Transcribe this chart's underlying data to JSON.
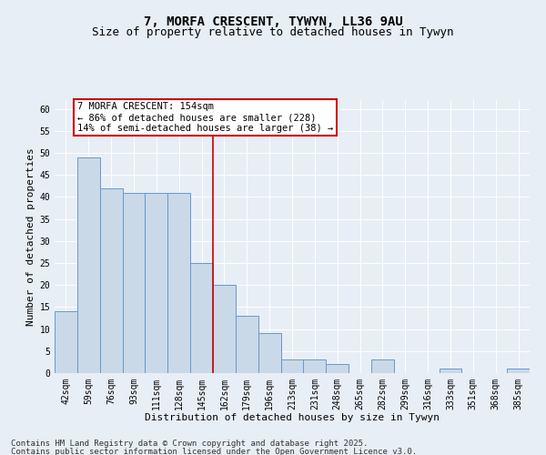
{
  "title": "7, MORFA CRESCENT, TYWYN, LL36 9AU",
  "subtitle": "Size of property relative to detached houses in Tywyn",
  "xlabel": "Distribution of detached houses by size in Tywyn",
  "ylabel": "Number of detached properties",
  "categories": [
    "42sqm",
    "59sqm",
    "76sqm",
    "93sqm",
    "111sqm",
    "128sqm",
    "145sqm",
    "162sqm",
    "179sqm",
    "196sqm",
    "213sqm",
    "231sqm",
    "248sqm",
    "265sqm",
    "282sqm",
    "299sqm",
    "316sqm",
    "333sqm",
    "351sqm",
    "368sqm",
    "385sqm"
  ],
  "values": [
    14,
    49,
    42,
    41,
    41,
    41,
    25,
    20,
    13,
    9,
    3,
    3,
    2,
    0,
    3,
    0,
    0,
    1,
    0,
    0,
    1
  ],
  "bar_color": "#c9d9e8",
  "bar_edge_color": "#6699cc",
  "red_line_index": 7,
  "annotation_text": "7 MORFA CRESCENT: 154sqm\n← 86% of detached houses are smaller (228)\n14% of semi-detached houses are larger (38) →",
  "annotation_box_color": "#ffffff",
  "annotation_box_edge": "#cc0000",
  "red_line_color": "#cc0000",
  "ylim": [
    0,
    62
  ],
  "yticks": [
    0,
    5,
    10,
    15,
    20,
    25,
    30,
    35,
    40,
    45,
    50,
    55,
    60
  ],
  "background_color": "#e8eef5",
  "grid_color": "#ffffff",
  "footer_line1": "Contains HM Land Registry data © Crown copyright and database right 2025.",
  "footer_line2": "Contains public sector information licensed under the Open Government Licence v3.0.",
  "title_fontsize": 10,
  "subtitle_fontsize": 9,
  "xlabel_fontsize": 8,
  "ylabel_fontsize": 8,
  "tick_fontsize": 7,
  "annotation_fontsize": 7.5,
  "footer_fontsize": 6.5
}
